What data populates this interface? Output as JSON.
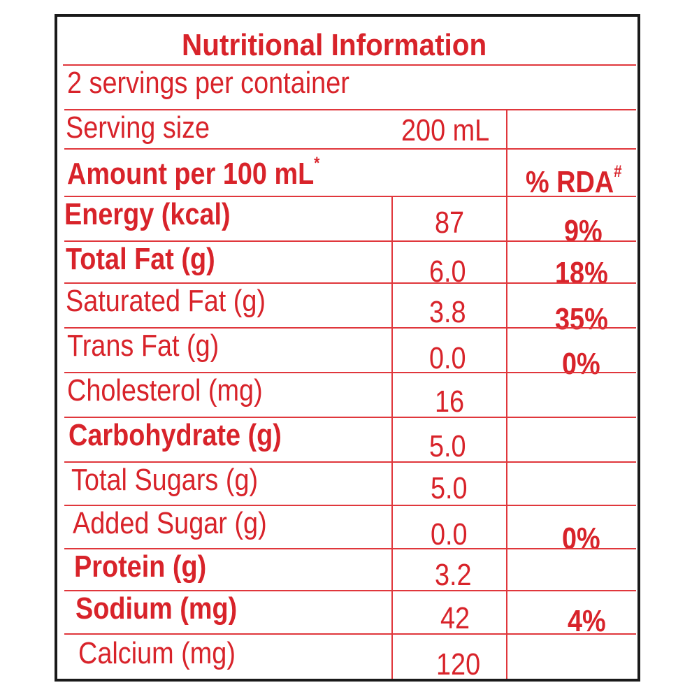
{
  "label": {
    "title": "Nutritional Information",
    "servings": "2 servings per container",
    "serving_size_label": "Serving size",
    "serving_size_value": "200 mL",
    "amount_header": "Amount per 100 mL",
    "amount_marker": "*",
    "rda_header": "% RDA",
    "rda_marker": "#",
    "rows": [
      {
        "name": "Energy (kcal)",
        "value": "87",
        "rda": "9%"
      },
      {
        "name": "Total Fat (g)",
        "value": "6.0",
        "rda": "18%"
      },
      {
        "name": "Saturated Fat (g)",
        "value": "3.8",
        "rda": "35%"
      },
      {
        "name": "Trans Fat (g)",
        "value": "0.0",
        "rda": "0%"
      },
      {
        "name": "Cholesterol (mg)",
        "value": "16",
        "rda": ""
      },
      {
        "name": "Carbohydrate (g)",
        "value": "5.0",
        "rda": ""
      },
      {
        "name": "Total Sugars (g)",
        "value": "5.0",
        "rda": ""
      },
      {
        "name": "Added Sugar (g)",
        "value": "0.0",
        "rda": "0%"
      },
      {
        "name": "Protein (g)",
        "value": "3.2",
        "rda": ""
      },
      {
        "name": "Sodium (mg)",
        "value": "42",
        "rda": "4%"
      },
      {
        "name": "Calcium (mg)",
        "value": "120",
        "rda": ""
      }
    ]
  },
  "colors": {
    "ink": "#d8232a",
    "rule": "#e0373c",
    "frame": "#1a1a1a"
  }
}
